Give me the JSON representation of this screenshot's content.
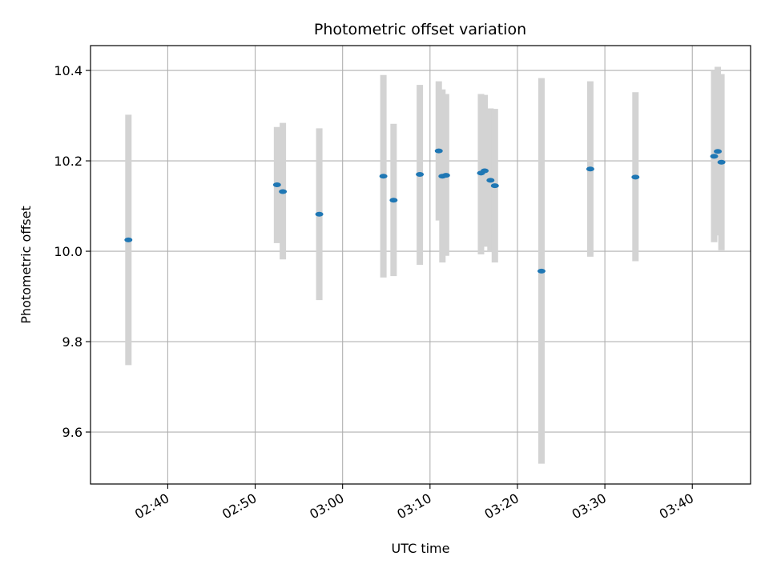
{
  "chart_data": {
    "type": "scatter",
    "title": "Photometric offset variation",
    "xlabel": "UTC time",
    "ylabel": "Photometric offset",
    "xlim": [
      "02:31:10",
      "03:46:40"
    ],
    "ylim": [
      9.485,
      10.455
    ],
    "x_ticks": [
      "02:40",
      "02:50",
      "03:00",
      "03:10",
      "03:20",
      "03:30",
      "03:40"
    ],
    "y_ticks": [
      "9.6",
      "9.8",
      "10.0",
      "10.2",
      "10.4"
    ],
    "grid": true,
    "point_color": "#1f77b4",
    "errorbar_color": "#d3d3d3",
    "points": [
      {
        "t": "02:35:30",
        "y": 10.025,
        "lo": 9.748,
        "hi": 10.302
      },
      {
        "t": "02:52:30",
        "y": 10.147,
        "lo": 10.018,
        "hi": 10.275
      },
      {
        "t": "02:53:10",
        "y": 10.132,
        "lo": 9.982,
        "hi": 10.284
      },
      {
        "t": "02:57:20",
        "y": 10.082,
        "lo": 9.892,
        "hi": 10.272
      },
      {
        "t": "03:04:40",
        "y": 10.166,
        "lo": 9.942,
        "hi": 10.39
      },
      {
        "t": "03:05:50",
        "y": 10.113,
        "lo": 9.945,
        "hi": 10.282
      },
      {
        "t": "03:08:50",
        "y": 10.17,
        "lo": 9.97,
        "hi": 10.368
      },
      {
        "t": "03:11:00",
        "y": 10.222,
        "lo": 10.068,
        "hi": 10.376
      },
      {
        "t": "03:11:25",
        "y": 10.166,
        "lo": 9.975,
        "hi": 10.358
      },
      {
        "t": "03:11:50",
        "y": 10.168,
        "lo": 9.99,
        "hi": 10.348
      },
      {
        "t": "03:15:50",
        "y": 10.173,
        "lo": 9.993,
        "hi": 10.348
      },
      {
        "t": "03:16:15",
        "y": 10.178,
        "lo": 10.01,
        "hi": 10.346
      },
      {
        "t": "03:16:55",
        "y": 10.157,
        "lo": 9.998,
        "hi": 10.316
      },
      {
        "t": "03:17:25",
        "y": 10.145,
        "lo": 9.975,
        "hi": 10.315
      },
      {
        "t": "03:22:45",
        "y": 9.956,
        "lo": 9.53,
        "hi": 10.383
      },
      {
        "t": "03:28:20",
        "y": 10.182,
        "lo": 9.988,
        "hi": 10.376
      },
      {
        "t": "03:33:30",
        "y": 10.164,
        "lo": 9.978,
        "hi": 10.352
      },
      {
        "t": "03:42:30",
        "y": 10.21,
        "lo": 10.02,
        "hi": 10.4
      },
      {
        "t": "03:42:55",
        "y": 10.221,
        "lo": 10.035,
        "hi": 10.408
      },
      {
        "t": "03:43:20",
        "y": 10.197,
        "lo": 10.002,
        "hi": 10.392
      }
    ]
  }
}
